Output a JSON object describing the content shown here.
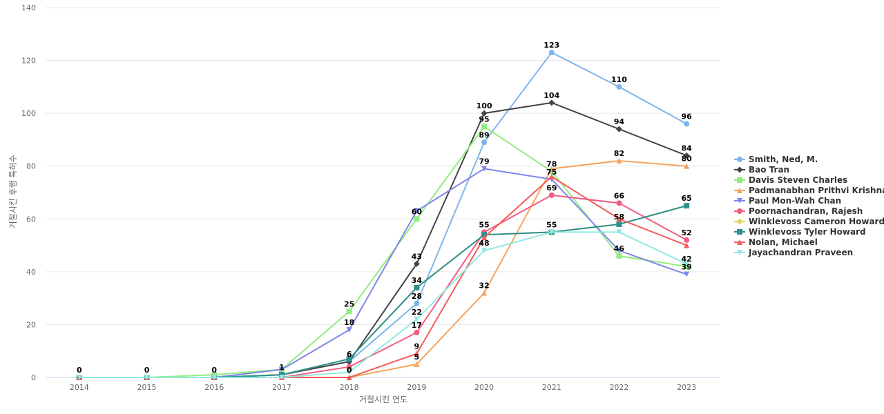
{
  "chart_data": {
    "type": "line",
    "xlabel": "거절시킨 연도",
    "ylabel": "거절시킨 후행 특허수",
    "ylim": [
      0,
      140
    ],
    "yticks": [
      0,
      20,
      40,
      60,
      80,
      100,
      120,
      140
    ],
    "categories": [
      "2014",
      "2015",
      "2016",
      "2017",
      "2018",
      "2019",
      "2020",
      "2021",
      "2022",
      "2023"
    ],
    "grid": true,
    "legend_position": "right",
    "series": [
      {
        "name": "Smith, Ned, M.",
        "color": "#7cb5ec",
        "marker": "circle",
        "values": [
          0,
          0,
          0,
          1,
          6,
          28,
          89,
          123,
          110,
          96
        ]
      },
      {
        "name": "Bao Tran",
        "color": "#434348",
        "marker": "diamond",
        "values": [
          0,
          0,
          0,
          1,
          6,
          43,
          100,
          104,
          94,
          84
        ]
      },
      {
        "name": "Davis Steven Charles",
        "color": "#90ed7d",
        "marker": "square",
        "values": [
          0,
          0,
          1,
          3,
          25,
          60,
          95,
          78,
          46,
          42
        ]
      },
      {
        "name": "Padmanabhan Prithvi Krishnan",
        "color": "#f7a35c",
        "marker": "triangle",
        "values": [
          0,
          0,
          0,
          0,
          0,
          5,
          32,
          79,
          82,
          80
        ]
      },
      {
        "name": "Paul Mon-Wah Chan",
        "color": "#8085e9",
        "marker": "triangle-down",
        "values": [
          0,
          0,
          0,
          3,
          18,
          63,
          79,
          75,
          48,
          39
        ]
      },
      {
        "name": "Poornachandran, Rajesh",
        "color": "#f15c80",
        "marker": "circle",
        "values": [
          0,
          0,
          0,
          0,
          4,
          17,
          55,
          69,
          66,
          52
        ]
      },
      {
        "name": "Winklevoss Cameron Howard",
        "color": "#e4d354",
        "marker": "diamond",
        "values": [
          0,
          0,
          0,
          1,
          7,
          34,
          54,
          55,
          58,
          65
        ]
      },
      {
        "name": "Winklevoss Tyler Howard",
        "color": "#2b908f",
        "marker": "square",
        "values": [
          0,
          0,
          0,
          1,
          7,
          34,
          54,
          55,
          58,
          65
        ]
      },
      {
        "name": "Nolan, Michael",
        "color": "#f45b5b",
        "marker": "triangle",
        "values": [
          0,
          0,
          0,
          0,
          0,
          9,
          53,
          76,
          60,
          50
        ]
      },
      {
        "name": "Jayachandran Praveen",
        "color": "#91e8e1",
        "marker": "triangle-down",
        "values": [
          0,
          0,
          0,
          0,
          2,
          22,
          48,
          55,
          55,
          43
        ]
      }
    ],
    "data_labels": [
      {
        "x": "2014",
        "y": 0,
        "text": "0"
      },
      {
        "x": "2015",
        "y": 0,
        "text": "0"
      },
      {
        "x": "2016",
        "y": 0,
        "text": "0"
      },
      {
        "x": "2017",
        "y": 1,
        "text": "1"
      },
      {
        "x": "2018",
        "y": 0,
        "text": "0"
      },
      {
        "x": "2018",
        "y": 6,
        "text": "6"
      },
      {
        "x": "2018",
        "y": 18,
        "text": "18"
      },
      {
        "x": "2018",
        "y": 25,
        "text": "25"
      },
      {
        "x": "2019",
        "y": 5,
        "text": "5"
      },
      {
        "x": "2019",
        "y": 9,
        "text": "9"
      },
      {
        "x": "2019",
        "y": 17,
        "text": "17"
      },
      {
        "x": "2019",
        "y": 22,
        "text": "22"
      },
      {
        "x": "2019",
        "y": 28,
        "text": "28"
      },
      {
        "x": "2019",
        "y": 34,
        "text": "34"
      },
      {
        "x": "2019",
        "y": 43,
        "text": "43"
      },
      {
        "x": "2019",
        "y": 60,
        "text": "60"
      },
      {
        "x": "2020",
        "y": 32,
        "text": "32"
      },
      {
        "x": "2020",
        "y": 48,
        "text": "48"
      },
      {
        "x": "2020",
        "y": 55,
        "text": "55"
      },
      {
        "x": "2020",
        "y": 79,
        "text": "79"
      },
      {
        "x": "2020",
        "y": 89,
        "text": "89"
      },
      {
        "x": "2020",
        "y": 95,
        "text": "95"
      },
      {
        "x": "2020",
        "y": 100,
        "text": "100"
      },
      {
        "x": "2021",
        "y": 55,
        "text": "55"
      },
      {
        "x": "2021",
        "y": 69,
        "text": "69"
      },
      {
        "x": "2021",
        "y": 75,
        "text": "75"
      },
      {
        "x": "2021",
        "y": 78,
        "text": "78"
      },
      {
        "x": "2021",
        "y": 104,
        "text": "104"
      },
      {
        "x": "2021",
        "y": 123,
        "text": "123"
      },
      {
        "x": "2022",
        "y": 46,
        "text": "46"
      },
      {
        "x": "2022",
        "y": 58,
        "text": "58"
      },
      {
        "x": "2022",
        "y": 66,
        "text": "66"
      },
      {
        "x": "2022",
        "y": 82,
        "text": "82"
      },
      {
        "x": "2022",
        "y": 94,
        "text": "94"
      },
      {
        "x": "2022",
        "y": 110,
        "text": "110"
      },
      {
        "x": "2023",
        "y": 39,
        "text": "39"
      },
      {
        "x": "2023",
        "y": 42,
        "text": "42"
      },
      {
        "x": "2023",
        "y": 52,
        "text": "52"
      },
      {
        "x": "2023",
        "y": 65,
        "text": "65"
      },
      {
        "x": "2023",
        "y": 80,
        "text": "80"
      },
      {
        "x": "2023",
        "y": 84,
        "text": "84"
      },
      {
        "x": "2023",
        "y": 96,
        "text": "96"
      }
    ]
  }
}
